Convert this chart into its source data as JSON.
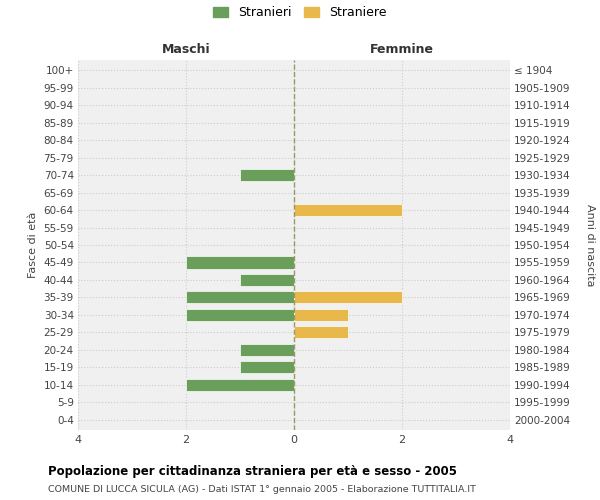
{
  "age_groups": [
    "100+",
    "95-99",
    "90-94",
    "85-89",
    "80-84",
    "75-79",
    "70-74",
    "65-69",
    "60-64",
    "55-59",
    "50-54",
    "45-49",
    "40-44",
    "35-39",
    "30-34",
    "25-29",
    "20-24",
    "15-19",
    "10-14",
    "5-9",
    "0-4"
  ],
  "birth_years": [
    "≤ 1904",
    "1905-1909",
    "1910-1914",
    "1915-1919",
    "1920-1924",
    "1925-1929",
    "1930-1934",
    "1935-1939",
    "1940-1944",
    "1945-1949",
    "1950-1954",
    "1955-1959",
    "1960-1964",
    "1965-1969",
    "1970-1974",
    "1975-1979",
    "1980-1984",
    "1985-1989",
    "1990-1994",
    "1995-1999",
    "2000-2004"
  ],
  "maschi_values": [
    0,
    0,
    0,
    0,
    0,
    0,
    1,
    0,
    0,
    0,
    0,
    2,
    1,
    2,
    2,
    0,
    1,
    1,
    2,
    0,
    0
  ],
  "femmine_values": [
    0,
    0,
    0,
    0,
    0,
    0,
    0,
    0,
    2,
    0,
    0,
    0,
    0,
    2,
    1,
    1,
    0,
    0,
    0,
    0,
    0
  ],
  "maschi_color": "#6a9e5b",
  "femmine_color": "#e8b84b",
  "bar_edge_color": "#ffffff",
  "grid_color": "#cccccc",
  "center_line_color": "#999966",
  "xlim": [
    -4,
    4
  ],
  "xticks": [
    -4,
    -2,
    0,
    2,
    4
  ],
  "xticklabels": [
    "4",
    "2",
    "0",
    "2",
    "4"
  ],
  "title": "Popolazione per cittadinanza straniera per età e sesso - 2005",
  "subtitle": "COMUNE DI LUCCA SICULA (AG) - Dati ISTAT 1° gennaio 2005 - Elaborazione TUTTITALIA.IT",
  "ylabel_left": "Fasce di età",
  "ylabel_right": "Anni di nascita",
  "header_left": "Maschi",
  "header_right": "Femmine",
  "legend_stranieri": "Stranieri",
  "legend_straniere": "Straniere",
  "background_color": "#ffffff",
  "plot_bg_color": "#f0f0f0"
}
